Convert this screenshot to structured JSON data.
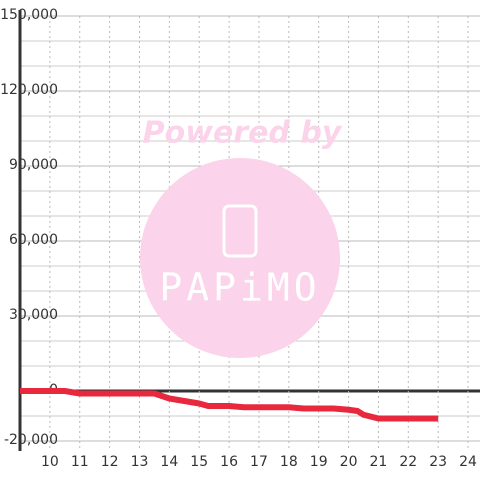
{
  "chart_data": {
    "type": "line",
    "watermark": {
      "title": "Powered by",
      "brand": "PAPiMO"
    },
    "xlim": [
      9,
      24.4
    ],
    "ylim": [
      -24000,
      150000
    ],
    "xticks": [
      10,
      11,
      12,
      13,
      14,
      15,
      16,
      17,
      18,
      19,
      20,
      21,
      22,
      23,
      24
    ],
    "yticks": [
      {
        "value": -20000,
        "label": "-20,000"
      },
      0,
      {
        "value": 30000,
        "label": "30,000"
      },
      {
        "value": 60000,
        "label": "60,000"
      },
      {
        "value": 90000,
        "label": "90,000"
      },
      {
        "value": 120000,
        "label": "120,000"
      },
      {
        "value": 150000,
        "label": "150,000"
      }
    ],
    "y_minor_grid": [
      -10000,
      10000,
      20000,
      40000,
      50000,
      70000,
      80000,
      100000,
      110000,
      130000,
      140000
    ],
    "grid": true,
    "series": [
      {
        "color": "#e8293d",
        "x": [
          9,
          10.5,
          11,
          12,
          13.5,
          14,
          14.5,
          15,
          15.3,
          16,
          16.5,
          18,
          18.5,
          19.5,
          20,
          20.3,
          20.5,
          21,
          22,
          23
        ],
        "values": [
          0,
          0,
          -1000,
          -1000,
          -1000,
          -3000,
          -4000,
          -5000,
          -6000,
          -6000,
          -6500,
          -6500,
          -7000,
          -7000,
          -7500,
          -8000,
          -9500,
          -11000,
          -11000,
          -11000
        ]
      }
    ]
  }
}
